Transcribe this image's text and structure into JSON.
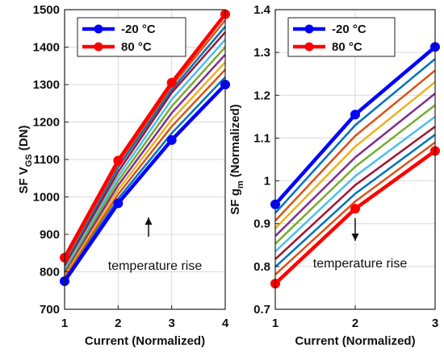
{
  "chart_data": [
    {
      "type": "line",
      "x": [
        1,
        2,
        3,
        4
      ],
      "xlim": [
        1,
        4
      ],
      "ylim": [
        700,
        1500
      ],
      "xticks": [
        "1",
        "2",
        "3",
        "4"
      ],
      "yticks": [
        "700",
        "800",
        "900",
        "1000",
        "1100",
        "1200",
        "1300",
        "1400",
        "1500"
      ],
      "xlabel": "Current (Normalized)",
      "ylabel": {
        "prefix": "SF  V",
        "sub": "GS",
        "suffix": " (DN)"
      },
      "grid": true,
      "legend": {
        "placement": "top-left"
      },
      "annotation": "temperature rise",
      "series": [
        {
          "name": "-20 °C",
          "color": "#0000ff",
          "highlight": true,
          "values": [
            775,
            983,
            1152,
            1300
          ]
        },
        {
          "color": "#0072bd",
          "values": [
            781,
            995,
            1170,
            1320
          ]
        },
        {
          "color": "#d95319",
          "values": [
            787,
            1007,
            1188,
            1340
          ]
        },
        {
          "color": "#edb120",
          "values": [
            793,
            1019,
            1206,
            1360
          ]
        },
        {
          "color": "#7e2f8e",
          "values": [
            799,
            1031,
            1224,
            1380
          ]
        },
        {
          "color": "#77ac30",
          "values": [
            805,
            1043,
            1242,
            1400
          ]
        },
        {
          "color": "#4dbeee",
          "values": [
            811,
            1055,
            1260,
            1420
          ]
        },
        {
          "color": "#a2142f",
          "values": [
            817,
            1067,
            1278,
            1440
          ]
        },
        {
          "color": "#0072bd",
          "values": [
            823,
            1079,
            1286,
            1455
          ]
        },
        {
          "color": "#d95319",
          "values": [
            829,
            1088,
            1295,
            1472
          ]
        },
        {
          "name": "80 °C",
          "color": "#ff0000",
          "highlight": true,
          "values": [
            838,
            1097,
            1305,
            1488
          ]
        }
      ]
    },
    {
      "type": "line",
      "x": [
        1,
        2,
        3
      ],
      "xlim": [
        1,
        3
      ],
      "ylim": [
        0.7,
        1.4
      ],
      "xticks": [
        "1",
        "2",
        "3"
      ],
      "yticks": [
        "0.7",
        "0.8",
        "0.9",
        "1",
        "1.1",
        "1.2",
        "1.3",
        "1.4"
      ],
      "xlabel": "Current (Normalized)",
      "ylabel": {
        "prefix": "SF  g",
        "sub": "m",
        "suffix": " (Normalized)"
      },
      "grid": true,
      "legend": {
        "placement": "top-left"
      },
      "annotation": "temperature rise",
      "series": [
        {
          "name": "-20 °C",
          "color": "#0000ff",
          "highlight": true,
          "values": [
            0.945,
            1.155,
            1.313
          ]
        },
        {
          "color": "#0072bd",
          "values": [
            0.925,
            1.13,
            1.285
          ]
        },
        {
          "color": "#d95319",
          "values": [
            0.907,
            1.105,
            1.258
          ]
        },
        {
          "color": "#edb120",
          "values": [
            0.889,
            1.08,
            1.231
          ]
        },
        {
          "color": "#7e2f8e",
          "values": [
            0.871,
            1.055,
            1.204
          ]
        },
        {
          "color": "#77ac30",
          "values": [
            0.853,
            1.033,
            1.177
          ]
        },
        {
          "color": "#4dbeee",
          "values": [
            0.835,
            1.011,
            1.15
          ]
        },
        {
          "color": "#a2142f",
          "values": [
            0.817,
            0.99,
            1.127
          ]
        },
        {
          "color": "#0072bd",
          "values": [
            0.799,
            0.97,
            1.108
          ]
        },
        {
          "color": "#d95319",
          "values": [
            0.781,
            0.952,
            1.09
          ]
        },
        {
          "name": "80 °C",
          "color": "#ff0000",
          "highlight": true,
          "values": [
            0.76,
            0.935,
            1.07
          ]
        }
      ]
    }
  ]
}
